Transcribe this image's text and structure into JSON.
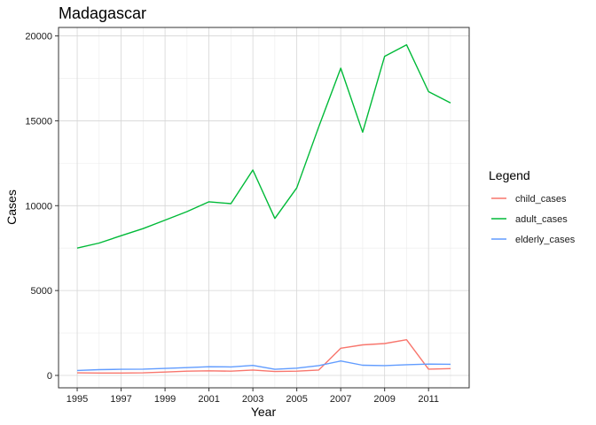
{
  "chart_data": {
    "type": "line",
    "title": "Madagascar",
    "xlabel": "Year",
    "ylabel": "Cases",
    "x": [
      1995,
      1996,
      1997,
      1998,
      1999,
      2000,
      2001,
      2002,
      2003,
      2004,
      2005,
      2006,
      2007,
      2008,
      2009,
      2010,
      2011,
      2012
    ],
    "xlim": [
      1994.15,
      2012.85
    ],
    "ylim": [
      -730,
      20500
    ],
    "xticks": [
      1995,
      1997,
      1999,
      2001,
      2003,
      2005,
      2007,
      2009,
      2011
    ],
    "yticks": [
      0,
      5000,
      10000,
      15000,
      20000
    ],
    "grid": true,
    "legend": {
      "title": "Legend",
      "placement": "right"
    },
    "series": [
      {
        "name": "child_cases",
        "color": "#F8766D",
        "values": [
          150,
          140,
          140,
          150,
          200,
          250,
          270,
          250,
          320,
          230,
          250,
          320,
          1600,
          1800,
          1880,
          2100,
          370,
          400
        ]
      },
      {
        "name": "adult_cases",
        "color": "#00BA38",
        "values": [
          7500,
          7800,
          8230,
          8650,
          9150,
          9650,
          10230,
          10120,
          12100,
          9250,
          11050,
          14650,
          18100,
          14330,
          18800,
          19480,
          16720,
          16050
        ]
      },
      {
        "name": "elderly_cases",
        "color": "#619CFF",
        "values": [
          290,
          340,
          360,
          370,
          410,
          460,
          510,
          500,
          590,
          360,
          430,
          580,
          850,
          600,
          580,
          630,
          670,
          660
        ]
      }
    ]
  }
}
